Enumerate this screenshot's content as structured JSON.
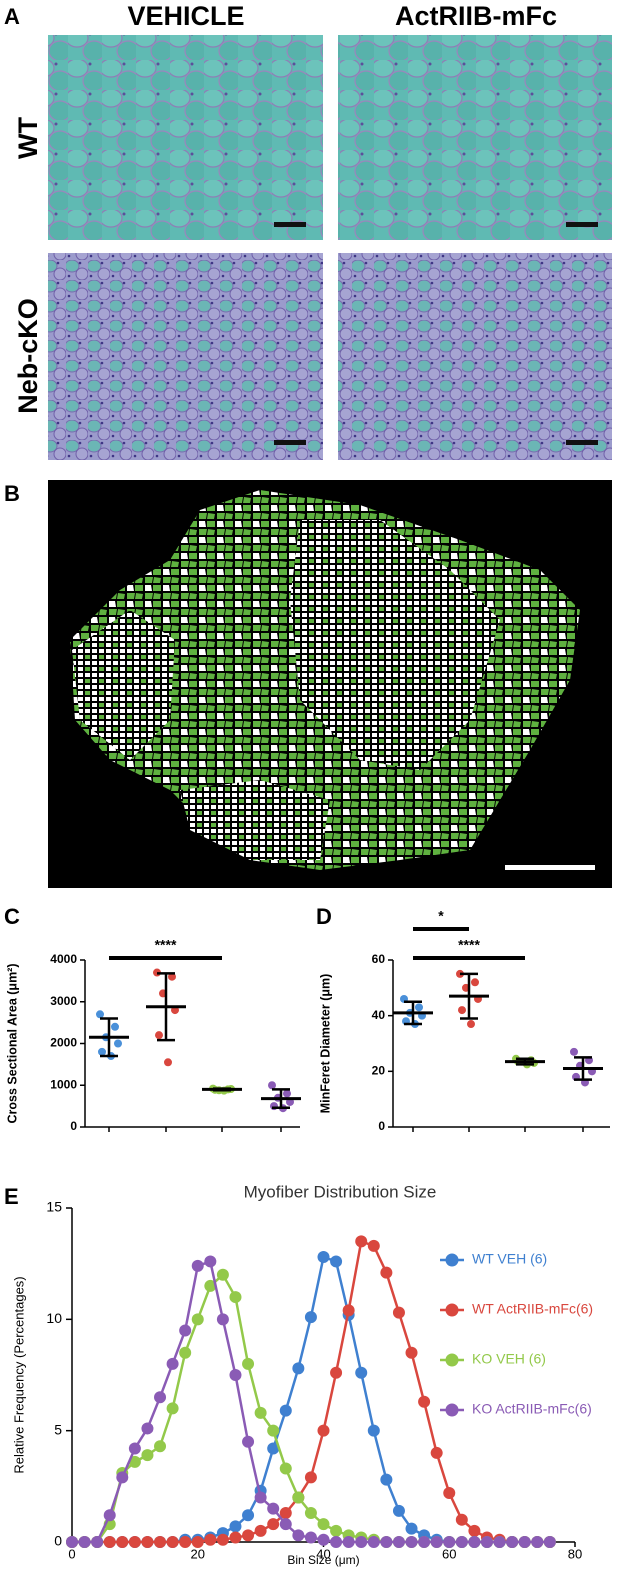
{
  "panels": {
    "A": {
      "label": "A",
      "columns": [
        "VEHICLE",
        "ActRIIB-mFc"
      ],
      "rows": [
        "WT",
        "Neb-cKO"
      ]
    },
    "B": {
      "label": "B"
    }
  },
  "chart_data": [
    {
      "type": "dot",
      "panel_label": "C",
      "ylabel": "Cross Sectional Area (μm²)",
      "ylim": [
        0,
        4000
      ],
      "yticks": [
        0,
        1000,
        2000,
        3000,
        4000
      ],
      "groups": [
        {
          "color": "#4a90d9",
          "values": [
            2700,
            2400,
            2150,
            2000,
            1800,
            1700
          ],
          "mean": 2150,
          "sd": 450
        },
        {
          "color": "#d9473e",
          "values": [
            3700,
            3600,
            3200,
            2800,
            2200,
            1550
          ],
          "mean": 2880,
          "sd": 800
        },
        {
          "color": "#93c94a",
          "values": [
            920,
            900,
            880,
            910,
            890,
            870
          ],
          "mean": 900,
          "sd": 20
        },
        {
          "color": "#8a5bb5",
          "values": [
            1000,
            800,
            700,
            600,
            500,
            450
          ],
          "mean": 680,
          "sd": 220
        }
      ],
      "annotations": [
        "****"
      ]
    },
    {
      "type": "dot",
      "panel_label": "D",
      "ylabel": "MinFeret Diameter (μm)",
      "ylim": [
        0,
        60
      ],
      "yticks": [
        0,
        20,
        40,
        60
      ],
      "groups": [
        {
          "color": "#4a90d9",
          "values": [
            46,
            43,
            41,
            40,
            38,
            37
          ],
          "mean": 41,
          "sd": 4
        },
        {
          "color": "#d9473e",
          "values": [
            55,
            52,
            50,
            46,
            42,
            37
          ],
          "mean": 47,
          "sd": 8
        },
        {
          "color": "#93c94a",
          "values": [
            24.5,
            24,
            23.5,
            23,
            23.5,
            22.5
          ],
          "mean": 23.5,
          "sd": 1
        },
        {
          "color": "#8a5bb5",
          "values": [
            27,
            24,
            22,
            20,
            18,
            16
          ],
          "mean": 21,
          "sd": 4
        }
      ],
      "annotations": [
        "*",
        "****"
      ]
    },
    {
      "type": "line",
      "panel_label": "E",
      "title": "Myofiber Distribution Size",
      "xlabel": "Bin Size (μm)",
      "ylabel": "Relative Frequency (Percentages)",
      "xlim": [
        0,
        80
      ],
      "xticks": [
        0,
        20,
        40,
        60,
        80
      ],
      "ylim": [
        0,
        15
      ],
      "yticks": [
        0,
        5,
        10,
        15
      ],
      "x": [
        0,
        2,
        4,
        6,
        8,
        10,
        12,
        14,
        16,
        18,
        20,
        22,
        24,
        26,
        28,
        30,
        32,
        34,
        36,
        38,
        40,
        42,
        44,
        46,
        48,
        50,
        52,
        54,
        56,
        58,
        60,
        62,
        64,
        66,
        68,
        70,
        72,
        74,
        76
      ],
      "series": [
        {
          "name": "WT VEH (6)",
          "color": "#3f80d0",
          "values": [
            0,
            0,
            0,
            0,
            0,
            0,
            0,
            0,
            0,
            0.1,
            0.1,
            0.2,
            0.4,
            0.7,
            1.2,
            2.3,
            4.2,
            5.9,
            7.8,
            10.1,
            12.8,
            12.6,
            10.2,
            7.6,
            5.0,
            2.8,
            1.4,
            0.6,
            0.3,
            0.1,
            0,
            0,
            0,
            0,
            0,
            0,
            0,
            0,
            0
          ]
        },
        {
          "name": "WT ActRIIB-mFc(6)",
          "color": "#d9473e",
          "values": [
            0,
            0,
            0,
            0,
            0,
            0,
            0,
            0,
            0,
            0,
            0,
            0.1,
            0.1,
            0.2,
            0.3,
            0.5,
            0.8,
            1.3,
            2.0,
            2.9,
            5.0,
            7.6,
            10.4,
            13.5,
            13.3,
            12.1,
            10.3,
            8.5,
            6.3,
            4.0,
            2.2,
            1.0,
            0.5,
            0.2,
            0.1,
            0,
            0,
            0,
            0
          ]
        },
        {
          "name": "KO VEH (6)",
          "color": "#93c94a",
          "values": [
            0,
            0,
            0,
            0.8,
            3.1,
            3.6,
            3.9,
            4.3,
            6.0,
            8.5,
            10.0,
            11.5,
            12.0,
            11.0,
            8.0,
            5.8,
            5.0,
            3.3,
            2.0,
            1.3,
            0.8,
            0.5,
            0.3,
            0.2,
            0.1,
            0,
            0,
            0,
            0,
            0,
            0,
            0,
            0,
            0,
            0,
            0,
            0,
            0,
            0
          ]
        },
        {
          "name": "KO ActRIIB-mFc(6)",
          "color": "#8a5bb5",
          "values": [
            0,
            0,
            0,
            1.2,
            2.9,
            4.2,
            5.1,
            6.5,
            8.0,
            9.5,
            12.4,
            12.6,
            10.0,
            7.5,
            4.5,
            2.0,
            1.5,
            0.8,
            0.3,
            0.2,
            0.1,
            0,
            0,
            0,
            0,
            0,
            0,
            0,
            0,
            0,
            0,
            0,
            0,
            0,
            0,
            0,
            0,
            0,
            0
          ]
        }
      ]
    }
  ]
}
